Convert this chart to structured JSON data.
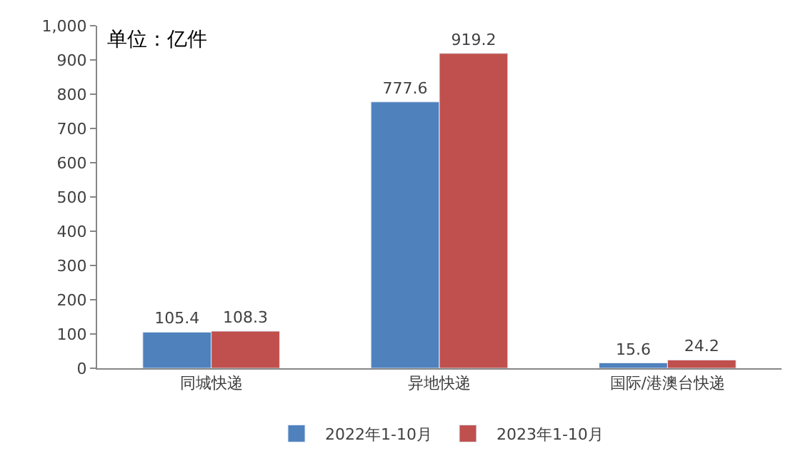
{
  "chart_data": {
    "type": "bar",
    "categories": [
      "同城快递",
      "异地快递",
      "国际/港澳台快递"
    ],
    "series": [
      {
        "name": "2022年1-10月",
        "color": "#4f81bd",
        "values": [
          105.4,
          777.6,
          15.6
        ]
      },
      {
        "name": "2023年1-10月",
        "color": "#c0504d",
        "values": [
          108.3,
          919.2,
          24.2
        ]
      }
    ],
    "ylim": [
      0,
      1000
    ],
    "yticks": [
      0,
      100,
      200,
      300,
      400,
      500,
      600,
      700,
      800,
      900,
      {
        "value": 1000,
        "label": "1,000"
      }
    ],
    "data_labels": true,
    "legend": "bottom",
    "annotations": [
      "单位：亿件"
    ]
  }
}
